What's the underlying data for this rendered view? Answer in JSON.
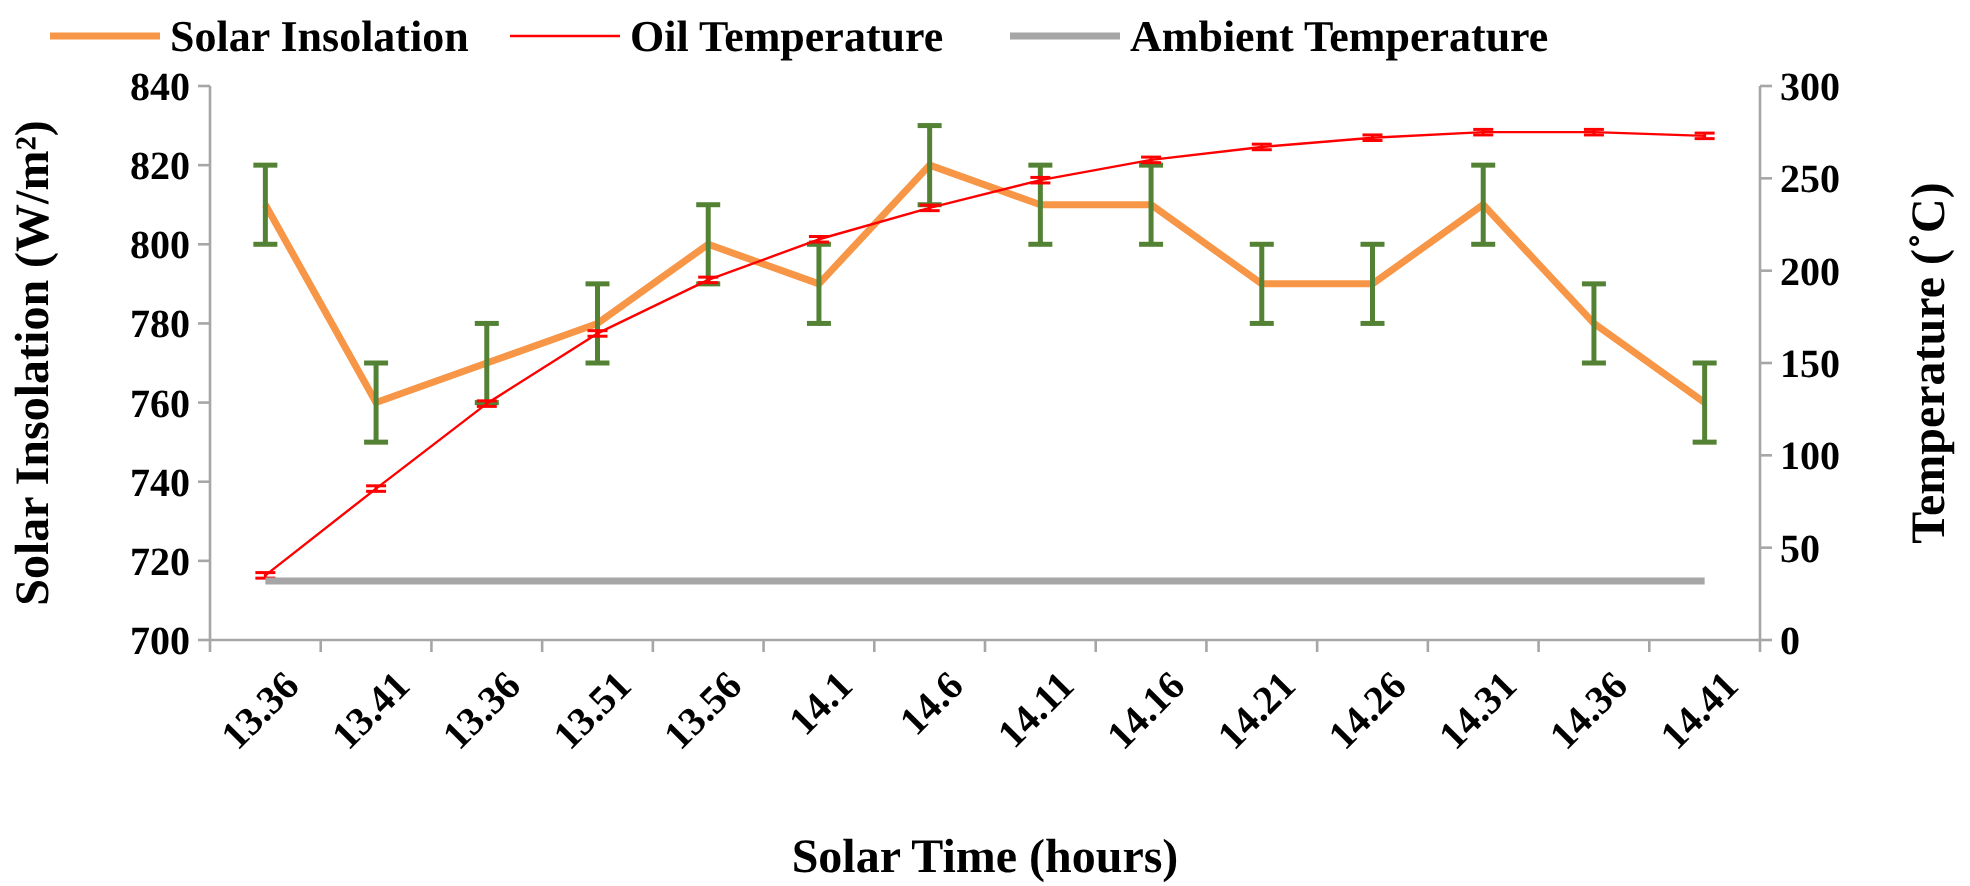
{
  "chart_data": {
    "type": "line",
    "xlabel": "Solar Time (hours)",
    "ylabel": "Solar Insolation (W/m²)",
    "y2label": "Temperature (˚C)",
    "categories": [
      "13.36",
      "13.41",
      "13.36",
      "13.51",
      "13.56",
      "14.1",
      "14.6",
      "14.11",
      "14.16",
      "14.21",
      "14.26",
      "14.31",
      "14.36",
      "14.41"
    ],
    "series": [
      {
        "name": "Solar Insolation",
        "color": "#f79646",
        "values": [
          810,
          760,
          770,
          780,
          800,
          790,
          820,
          810,
          810,
          790,
          790,
          810,
          780,
          760
        ],
        "errors": [
          10,
          10,
          10,
          10,
          10,
          10,
          10,
          10,
          10,
          10,
          10,
          10,
          10,
          10
        ]
      },
      {
        "name": "Oil Temperature",
        "color": "#ff0000",
        "axis": "y2",
        "values": [
          35,
          82,
          128,
          166,
          195,
          217,
          234,
          249,
          260,
          267,
          272,
          275,
          275,
          273
        ],
        "errors": [
          1.5,
          1.5,
          1.5,
          1.5,
          1.5,
          1.5,
          1.5,
          1.5,
          1.5,
          1.5,
          1.5,
          1.5,
          1.5,
          1.5
        ]
      },
      {
        "name": "Ambient Temperature",
        "color": "#a6a6a6",
        "axis": "y2",
        "values": [
          32,
          32,
          32,
          32,
          32,
          32,
          32,
          32,
          32,
          32,
          32,
          32,
          32,
          32
        ]
      }
    ],
    "ylim": [
      700,
      840
    ],
    "yticks": [
      700,
      720,
      740,
      760,
      780,
      800,
      820,
      840
    ],
    "y2lim": [
      0,
      300
    ],
    "y2ticks": [
      0,
      50,
      100,
      150,
      200,
      250,
      300
    ],
    "legend": "top",
    "grid": false,
    "marker": "none",
    "line_style": "solid"
  }
}
